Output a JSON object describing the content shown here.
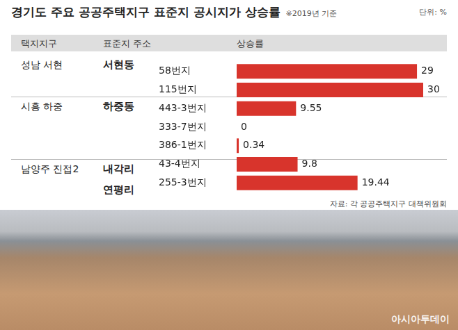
{
  "title": "경기도 주요 공공주택지구 표준지 공시지가 상승률",
  "note": "※2019년 기준",
  "unit": "단위: %",
  "source": "자료: 각 공공주택지구 대책위원회",
  "logo": "아시아투데이",
  "table": {
    "header": [
      "택지지구",
      "표준지 주소",
      "상승률"
    ],
    "district": [
      "성남 서현",
      null,
      "시흥 하중",
      null,
      null,
      "남양주 진접2",
      null
    ],
    "dong": [
      "서현동",
      null,
      "하중동",
      null,
      null,
      "내각리",
      "연평리"
    ]
  },
  "chart_data": {
    "type": "bar",
    "orientation": "horizontal",
    "categories": [
      "58번지",
      "115번지",
      "443-3번지",
      "333-7번지",
      "386-1번지",
      "43-4번지",
      "255-3번지"
    ],
    "values": [
      29,
      30,
      9.55,
      0,
      0.34,
      9.8,
      19.44
    ],
    "color": "#d8342c",
    "xlim": [
      0,
      30
    ],
    "grid": false,
    "data_labels": true,
    "tick_labels": "y"
  }
}
